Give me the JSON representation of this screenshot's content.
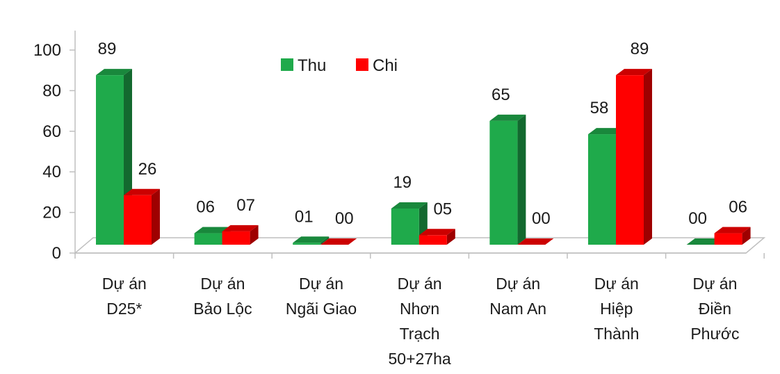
{
  "chart_data": {
    "type": "bar",
    "categories": [
      [
        "Dự án",
        "D25*"
      ],
      [
        "Dự án",
        "Bảo Lộc"
      ],
      [
        "Dự án",
        "Ngãi Giao"
      ],
      [
        "Dự án",
        "Nhơn",
        "Trạch",
        "50+27ha"
      ],
      [
        "Dự án",
        "Nam An"
      ],
      [
        "Dự án",
        "Hiệp",
        "Thành"
      ],
      [
        "Dự án",
        "Điền",
        "Phước"
      ]
    ],
    "series": [
      {
        "name": "Thu",
        "color": "#1faa4b",
        "values": [
          89,
          6,
          1,
          19,
          65,
          58,
          0
        ],
        "labels": [
          "89",
          "06",
          "01",
          "19",
          "65",
          "58",
          "00"
        ]
      },
      {
        "name": "Chi",
        "color": "#ff0000",
        "values": [
          26,
          7,
          0,
          5,
          0,
          89,
          6
        ],
        "labels": [
          "26",
          "07",
          "00",
          "05",
          "00",
          "89",
          "06"
        ]
      }
    ],
    "yticks": [
      "0",
      "20",
      "40",
      "60",
      "80",
      "100"
    ],
    "ylim": [
      0,
      100
    ],
    "legend": "top-center",
    "grid": false,
    "style": "3d-column"
  }
}
